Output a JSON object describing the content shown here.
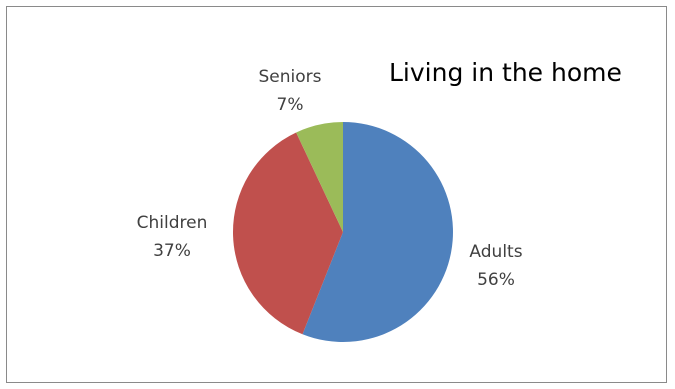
{
  "chart_data": {
    "type": "pie",
    "title": "Living in the home",
    "categories": [
      "Adults",
      "Children",
      "Seniors"
    ],
    "values": [
      56,
      37,
      7
    ],
    "percent_labels": [
      "56%",
      "37%",
      "7%"
    ],
    "colors": [
      "#4f81bd",
      "#c0504d",
      "#9bbb59"
    ],
    "legend": "none",
    "start_angle_deg": 0,
    "direction": "clockwise"
  }
}
